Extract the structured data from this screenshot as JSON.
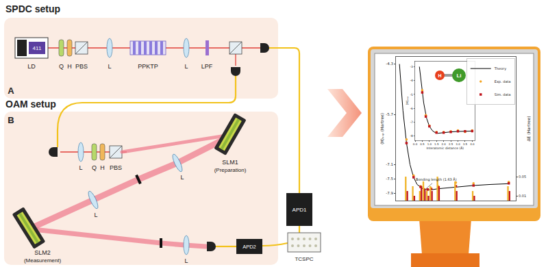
{
  "diagram": {
    "panel_a": {
      "title": "SPDC setup",
      "letter": "A",
      "source": {
        "label": "LD",
        "badge": "411"
      },
      "components": [
        "Q",
        "H",
        "PBS",
        "L",
        "PPKTP",
        "L",
        "LPF"
      ]
    },
    "panel_b": {
      "title": "OAM setup",
      "letter": "B",
      "components": [
        "L",
        "Q",
        "H",
        "PBS"
      ],
      "slm1": {
        "label": "SLM1",
        "role": "(Preparation)"
      },
      "slm2": {
        "label": "SLM2",
        "role": "(Measurement)"
      },
      "lenses": [
        "L",
        "L",
        "L"
      ]
    },
    "detectors": {
      "apd1": "APD1",
      "apd2": "APD2",
      "tcspc": "TCSPC"
    },
    "molecule": [
      "H",
      "Li"
    ]
  },
  "chart_data": [
    {
      "type": "line",
      "y_label": "⟨H⟩ₑₓₚ (Hartree)",
      "y2_label": "ΔE (Hartree)",
      "xlim": [
        0.8,
        4.2
      ],
      "ylim": [
        -8.1,
        -4.1
      ],
      "yticks": [
        -4.3,
        -5.7,
        -7.1,
        -7.5,
        -7.9
      ],
      "y2lim": [
        0,
        0.3
      ],
      "y2ticks": [
        0.01,
        0.05
      ],
      "tick_labels": "y",
      "legend": "top right",
      "grid": false,
      "annotations": [
        {
          "text": "Bonding length (1.63 Å)",
          "x": 1.63,
          "y": -7.79
        }
      ],
      "series": [
        {
          "name": "Theory",
          "type": "line",
          "color": "#000000",
          "line_style": "solid",
          "x": [
            0.9,
            1.0,
            1.1,
            1.2,
            1.3,
            1.4,
            1.6,
            1.8,
            2.0,
            2.5,
            3.0,
            3.5,
            4.0
          ],
          "values": [
            -4.3,
            -5.6,
            -6.5,
            -7.1,
            -7.45,
            -7.65,
            -7.8,
            -7.8,
            -7.77,
            -7.72,
            -7.68,
            -7.65,
            -7.63
          ]
        },
        {
          "name": "Exp. data",
          "type": "scatter",
          "marker": "circle",
          "color": "#f5a623",
          "x": [
            1.1,
            1.3,
            1.5,
            1.6,
            1.7,
            1.8,
            2.0,
            2.5,
            3.0,
            4.0
          ],
          "values": [
            -6.4,
            -7.4,
            -7.7,
            -7.78,
            -7.8,
            -7.76,
            -7.7,
            -7.6,
            -7.62,
            -7.58
          ]
        },
        {
          "name": "Sim. data",
          "type": "scatter",
          "marker": "square",
          "color": "#c0141c",
          "x": [
            1.1,
            1.3,
            1.5,
            1.6,
            1.7,
            1.8,
            2.0,
            2.5,
            3.0,
            4.0
          ],
          "values": [
            -6.5,
            -7.45,
            -7.72,
            -7.8,
            -7.79,
            -7.78,
            -7.74,
            -7.7,
            -7.68,
            -7.62
          ]
        },
        {
          "name": "Exp. data",
          "type": "bar",
          "axis": "y2",
          "color": "#f0b429",
          "x": [
            1.1,
            1.3,
            1.5,
            1.6,
            1.7,
            1.8,
            2.0,
            2.5,
            3.0,
            4.0
          ],
          "values": [
            0.05,
            0.03,
            0.02,
            0.04,
            0.02,
            0.03,
            0.05,
            0.04,
            0.02,
            0.03
          ]
        },
        {
          "name": "Sim. data",
          "type": "bar",
          "axis": "y2",
          "color": "#c0141c",
          "x": [
            1.1,
            1.3,
            1.5,
            1.6,
            1.7,
            1.8,
            2.0,
            2.5,
            3.0,
            4.0
          ],
          "values": [
            0.02,
            0.01,
            0.03,
            0.02,
            0.01,
            0.02,
            0.03,
            0.02,
            0.01,
            0.02
          ]
        }
      ]
    },
    {
      "type": "line",
      "x_label": "Interatomic distance (Å)",
      "y_label": "⟨H⟩ₑₓₚ",
      "xlim": [
        0,
        4.2
      ],
      "xticks": [
        {
          "value": 0,
          "label": "0.0"
        },
        0.5,
        {
          "value": 1,
          "label": "1.0"
        },
        1.5,
        {
          "value": 2,
          "label": "2.0"
        },
        2.5,
        {
          "value": 3,
          "label": "3.0"
        },
        3.5,
        {
          "value": 4,
          "label": "4.0"
        }
      ],
      "ylim": [
        -8.3,
        -2.6
      ],
      "yticks": [
        -3,
        -4,
        -5,
        -6,
        -7,
        -8
      ],
      "series": [
        {
          "name": "Theory",
          "type": "line",
          "color": "#000000",
          "line_style": "solid",
          "x": [
            0.3,
            0.4,
            0.5,
            0.6,
            0.8,
            1.0,
            1.2,
            1.4,
            1.6,
            2.0,
            2.5,
            3.0,
            3.5,
            4.0
          ],
          "values": [
            -3.0,
            -3.9,
            -4.8,
            -5.6,
            -6.7,
            -7.3,
            -7.6,
            -7.75,
            -7.8,
            -7.75,
            -7.7,
            -7.67,
            -7.65,
            -7.64
          ]
        },
        {
          "name": "Exp. data",
          "type": "scatter",
          "marker": "circle",
          "color": "#f5a623",
          "x": [
            0.5,
            0.75,
            1.0,
            1.5,
            2.0,
            2.5,
            3.0,
            3.5,
            4.0
          ],
          "values": [
            -4.7,
            -6.5,
            -7.25,
            -7.7,
            -7.7,
            -7.65,
            -7.6,
            -7.7,
            -7.6
          ]
        },
        {
          "name": "Sim. data",
          "type": "scatter",
          "marker": "square",
          "color": "#c0141c",
          "x": [
            0.5,
            0.75,
            1.0,
            1.5,
            2.0,
            2.5,
            3.0,
            3.5,
            4.0
          ],
          "values": [
            -4.85,
            -6.6,
            -7.3,
            -7.75,
            -7.76,
            -7.7,
            -7.66,
            -7.66,
            -7.64
          ]
        }
      ]
    }
  ]
}
